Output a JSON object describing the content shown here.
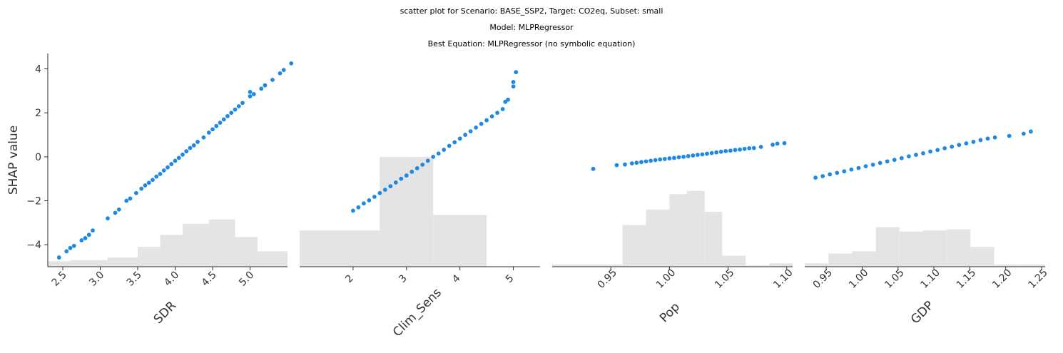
{
  "titles": {
    "line1": "scatter plot for Scenario: BASE_SSP2, Target: CO2eq, Subset: small",
    "line2": "Model: MLPRegressor",
    "line3": "Best Equation: MLPRegressor (no symbolic equation)"
  },
  "colors": {
    "points": "#1e88e5",
    "histogram": "#e4e4e4",
    "axis": "#333333"
  },
  "chart_data": [
    {
      "type": "scatter",
      "xlabel": "SDR",
      "ylabel": "SHAP value",
      "xlim": [
        2.3,
        5.5
      ],
      "ylim": [
        -5.0,
        4.7
      ],
      "xticks": [
        2.5,
        3.0,
        3.5,
        4.0,
        4.5,
        5.0
      ],
      "xtick_labels": [
        "2.5",
        "3.0",
        "3.5",
        "4.0",
        "4.5",
        "5.0"
      ],
      "yticks": [
        -4,
        -2,
        0,
        2,
        4
      ],
      "ytick_labels": [
        "−4",
        "−2",
        "0",
        "2",
        "4"
      ],
      "points": [
        [
          2.45,
          -4.58
        ],
        [
          2.55,
          -4.3
        ],
        [
          2.6,
          -4.15
        ],
        [
          2.65,
          -4.05
        ],
        [
          2.75,
          -3.8
        ],
        [
          2.8,
          -3.7
        ],
        [
          2.85,
          -3.55
        ],
        [
          2.9,
          -3.35
        ],
        [
          3.1,
          -2.8
        ],
        [
          3.2,
          -2.55
        ],
        [
          3.25,
          -2.4
        ],
        [
          3.35,
          -2.0
        ],
        [
          3.4,
          -1.9
        ],
        [
          3.48,
          -1.65
        ],
        [
          3.55,
          -1.45
        ],
        [
          3.6,
          -1.3
        ],
        [
          3.65,
          -1.18
        ],
        [
          3.7,
          -1.05
        ],
        [
          3.75,
          -0.9
        ],
        [
          3.8,
          -0.78
        ],
        [
          3.85,
          -0.62
        ],
        [
          3.9,
          -0.48
        ],
        [
          3.95,
          -0.33
        ],
        [
          4.0,
          -0.18
        ],
        [
          4.05,
          -0.05
        ],
        [
          4.1,
          0.1
        ],
        [
          4.15,
          0.25
        ],
        [
          4.2,
          0.4
        ],
        [
          4.25,
          0.52
        ],
        [
          4.3,
          0.68
        ],
        [
          4.38,
          0.88
        ],
        [
          4.45,
          1.1
        ],
        [
          4.5,
          1.25
        ],
        [
          4.55,
          1.4
        ],
        [
          4.6,
          1.55
        ],
        [
          4.65,
          1.7
        ],
        [
          4.7,
          1.85
        ],
        [
          4.75,
          2.0
        ],
        [
          4.8,
          2.15
        ],
        [
          4.85,
          2.3
        ],
        [
          4.9,
          2.45
        ],
        [
          5.0,
          2.75
        ],
        [
          5.0,
          2.95
        ],
        [
          5.05,
          2.85
        ],
        [
          5.15,
          3.1
        ],
        [
          5.2,
          3.25
        ],
        [
          5.3,
          3.5
        ],
        [
          5.4,
          3.8
        ],
        [
          5.45,
          3.95
        ],
        [
          5.55,
          4.25
        ]
      ],
      "hist_edges": [
        2.3,
        2.6,
        3.1,
        3.5,
        3.8,
        4.1,
        4.45,
        4.8,
        5.1,
        5.5
      ],
      "hist_heights": [
        0.25,
        0.3,
        0.42,
        0.9,
        1.45,
        1.95,
        2.15,
        1.35,
        0.7,
        0.28
      ],
      "hist_height_unit": "SHAP axis units above the lower axis bound (histogram fill level)"
    },
    {
      "type": "scatter",
      "xlabel": "Clim_Sens",
      "xlim": [
        1.0,
        5.5
      ],
      "ylim": [
        -5.0,
        4.7
      ],
      "xticks": [
        2,
        3,
        4,
        5
      ],
      "xtick_labels": [
        "2",
        "3",
        "4",
        "5"
      ],
      "points": [
        [
          2.0,
          -2.45
        ],
        [
          2.1,
          -2.3
        ],
        [
          2.2,
          -2.12
        ],
        [
          2.3,
          -1.98
        ],
        [
          2.4,
          -1.82
        ],
        [
          2.5,
          -1.65
        ],
        [
          2.6,
          -1.5
        ],
        [
          2.7,
          -1.34
        ],
        [
          2.8,
          -1.17
        ],
        [
          2.9,
          -1.0
        ],
        [
          3.0,
          -0.85
        ],
        [
          3.1,
          -0.68
        ],
        [
          3.2,
          -0.52
        ],
        [
          3.3,
          -0.36
        ],
        [
          3.4,
          -0.18
        ],
        [
          3.5,
          0.0
        ],
        [
          3.6,
          0.15
        ],
        [
          3.7,
          0.32
        ],
        [
          3.8,
          0.5
        ],
        [
          3.9,
          0.66
        ],
        [
          4.0,
          0.83
        ],
        [
          4.1,
          1.0
        ],
        [
          4.2,
          1.16
        ],
        [
          4.3,
          1.33
        ],
        [
          4.4,
          1.5
        ],
        [
          4.5,
          1.66
        ],
        [
          4.6,
          1.84
        ],
        [
          4.7,
          2.0
        ],
        [
          4.8,
          2.17
        ],
        [
          4.85,
          2.5
        ],
        [
          4.9,
          2.6
        ],
        [
          5.0,
          3.2
        ],
        [
          5.0,
          3.4
        ],
        [
          5.05,
          3.85
        ]
      ],
      "hist_edges": [
        1.0,
        1.75,
        2.5,
        3.5,
        4.5,
        5.5
      ],
      "hist_heights": [
        1.65,
        1.65,
        5.0,
        2.35,
        0.0
      ],
      "hist_height_unit": "SHAP axis units above the lower axis bound (histogram fill level)"
    },
    {
      "type": "scatter",
      "xlabel": "Pop",
      "xlim": [
        0.9,
        1.105
      ],
      "ylim": [
        -5.0,
        4.7
      ],
      "xticks": [
        0.95,
        1.0,
        1.05,
        1.1
      ],
      "xtick_labels": [
        "0.95",
        "1.00",
        "1.05",
        "1.10"
      ],
      "points": [
        [
          0.935,
          -0.55
        ],
        [
          0.955,
          -0.38
        ],
        [
          0.962,
          -0.35
        ],
        [
          0.968,
          -0.3
        ],
        [
          0.972,
          -0.27
        ],
        [
          0.976,
          -0.24
        ],
        [
          0.98,
          -0.21
        ],
        [
          0.984,
          -0.18
        ],
        [
          0.988,
          -0.15
        ],
        [
          0.992,
          -0.12
        ],
        [
          0.996,
          -0.1
        ],
        [
          1.0,
          -0.07
        ],
        [
          1.004,
          -0.05
        ],
        [
          1.008,
          -0.02
        ],
        [
          1.012,
          0.0
        ],
        [
          1.016,
          0.03
        ],
        [
          1.02,
          0.06
        ],
        [
          1.024,
          0.09
        ],
        [
          1.028,
          0.11
        ],
        [
          1.032,
          0.14
        ],
        [
          1.036,
          0.17
        ],
        [
          1.04,
          0.2
        ],
        [
          1.044,
          0.23
        ],
        [
          1.048,
          0.26
        ],
        [
          1.052,
          0.28
        ],
        [
          1.056,
          0.31
        ],
        [
          1.06,
          0.33
        ],
        [
          1.064,
          0.36
        ],
        [
          1.068,
          0.39
        ],
        [
          1.072,
          0.4
        ],
        [
          1.078,
          0.45
        ],
        [
          1.088,
          0.55
        ],
        [
          1.092,
          0.6
        ],
        [
          1.098,
          0.62
        ]
      ],
      "hist_edges": [
        0.9,
        0.92,
        0.96,
        0.98,
        1.0,
        1.015,
        1.03,
        1.045,
        1.065,
        1.085,
        1.105
      ],
      "hist_heights": [
        0.1,
        0.1,
        1.9,
        2.6,
        3.3,
        3.45,
        2.5,
        0.5,
        0.05,
        0.15
      ],
      "hist_height_unit": "SHAP axis units above the lower axis bound (histogram fill level)"
    },
    {
      "type": "scatter",
      "xlabel": "GDP",
      "xlim": [
        0.92,
        1.255
      ],
      "ylim": [
        -5.0,
        4.7
      ],
      "xticks": [
        0.95,
        1.0,
        1.05,
        1.1,
        1.15,
        1.2,
        1.25
      ],
      "xtick_labels": [
        "0.95",
        "1.00",
        "1.05",
        "1.10",
        "1.15",
        "1.20",
        "1.25"
      ],
      "points": [
        [
          0.935,
          -0.95
        ],
        [
          0.945,
          -0.88
        ],
        [
          0.955,
          -0.8
        ],
        [
          0.965,
          -0.73
        ],
        [
          0.975,
          -0.66
        ],
        [
          0.985,
          -0.58
        ],
        [
          0.995,
          -0.51
        ],
        [
          1.005,
          -0.43
        ],
        [
          1.015,
          -0.36
        ],
        [
          1.025,
          -0.28
        ],
        [
          1.035,
          -0.21
        ],
        [
          1.045,
          -0.14
        ],
        [
          1.055,
          -0.06
        ],
        [
          1.065,
          0.02
        ],
        [
          1.075,
          0.09
        ],
        [
          1.085,
          0.16
        ],
        [
          1.095,
          0.24
        ],
        [
          1.105,
          0.31
        ],
        [
          1.115,
          0.39
        ],
        [
          1.125,
          0.46
        ],
        [
          1.135,
          0.54
        ],
        [
          1.145,
          0.61
        ],
        [
          1.155,
          0.68
        ],
        [
          1.165,
          0.76
        ],
        [
          1.175,
          0.83
        ],
        [
          1.185,
          0.88
        ],
        [
          1.205,
          0.95
        ],
        [
          1.225,
          1.05
        ],
        [
          1.235,
          1.15
        ]
      ],
      "hist_edges": [
        0.92,
        0.953,
        0.986,
        1.019,
        1.052,
        1.085,
        1.118,
        1.151,
        1.184,
        1.217,
        1.255
      ],
      "hist_heights": [
        0.15,
        0.6,
        0.7,
        1.8,
        1.6,
        1.65,
        1.7,
        0.9,
        0.1,
        0.1
      ],
      "hist_height_unit": "SHAP axis units above the lower axis bound (histogram fill level)"
    }
  ]
}
